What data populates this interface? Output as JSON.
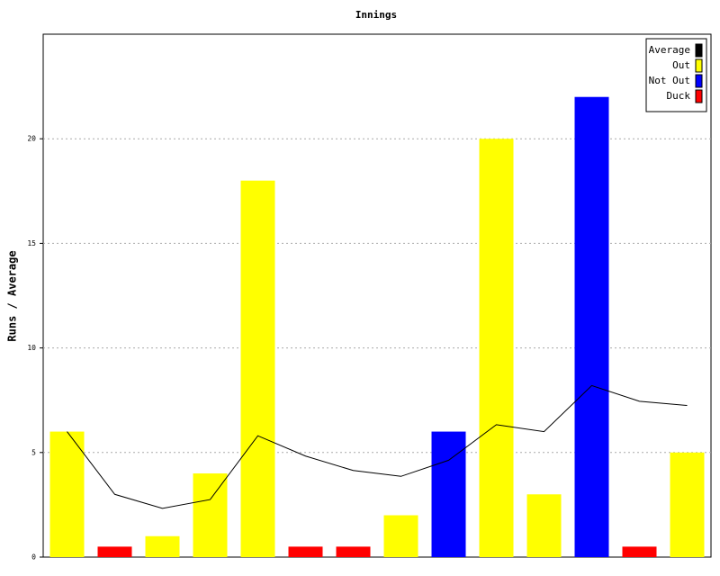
{
  "chart_data": {
    "type": "bar",
    "title": "Innings",
    "y_label": "Runs / Average",
    "categories": [
      null,
      null,
      null,
      null,
      null,
      null,
      null,
      null,
      null,
      null,
      null,
      null,
      null,
      null
    ],
    "series": [
      {
        "name": "Average",
        "type": "line",
        "color": "#000000",
        "values": [
          6,
          3,
          2.33,
          2.75,
          5.8,
          4.83,
          4.14,
          3.86,
          4.63,
          6.33,
          6,
          8.2,
          7.45,
          7.25
        ]
      },
      {
        "name": "Out",
        "color": "#ffff00",
        "values": [
          6,
          null,
          1,
          4,
          18,
          null,
          null,
          2,
          null,
          20,
          3,
          null,
          null,
          5
        ]
      },
      {
        "name": "Not Out",
        "color": "#0000ff",
        "values": [
          null,
          null,
          null,
          null,
          null,
          null,
          null,
          null,
          6,
          null,
          null,
          22,
          null,
          null
        ]
      },
      {
        "name": "Duck",
        "color": "#ff0000",
        "values": [
          null,
          0.5,
          null,
          null,
          null,
          0.5,
          0.5,
          null,
          null,
          null,
          null,
          null,
          0.5,
          null
        ]
      }
    ],
    "ylim": [
      0,
      25
    ],
    "yticks": [
      0,
      5,
      10,
      15,
      20
    ],
    "grid": true,
    "legend": "top-right"
  }
}
